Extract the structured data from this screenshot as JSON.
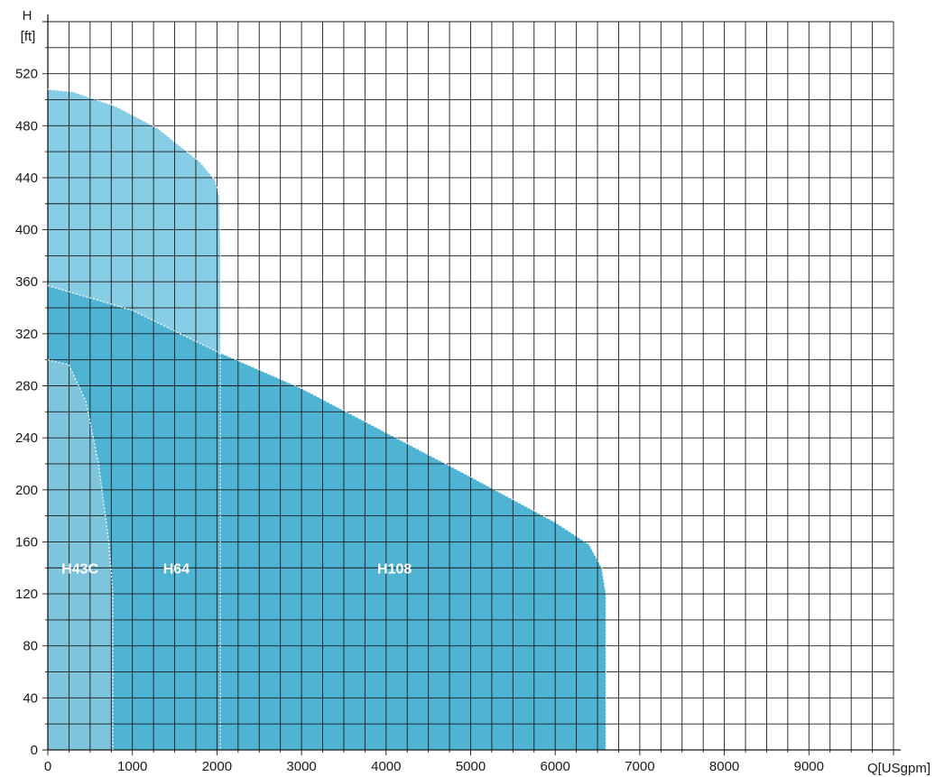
{
  "chart_data": {
    "type": "area",
    "title": "",
    "xlabel": "Q[USgpm]",
    "ylabel_top": "H",
    "ylabel_unit": "[ft]",
    "xlim": [
      0,
      10000
    ],
    "ylim": [
      0,
      560
    ],
    "x_ticks": [
      0,
      1000,
      2000,
      3000,
      4000,
      5000,
      6000,
      7000,
      8000,
      9000
    ],
    "y_ticks": [
      0,
      40,
      80,
      120,
      160,
      200,
      240,
      280,
      320,
      360,
      400,
      440,
      480,
      520
    ],
    "grid": true,
    "minor_x_step": 250,
    "minor_y_step": 20,
    "grid_color": "#1a1a1a",
    "series": [
      {
        "name": "H108",
        "color": "#4fb3d4",
        "label_at": [
          4100,
          140
        ],
        "points": [
          [
            0,
            357
          ],
          [
            1000,
            338
          ],
          [
            2050,
            305
          ],
          [
            3000,
            278
          ],
          [
            4000,
            244
          ],
          [
            5000,
            210
          ],
          [
            6000,
            175
          ],
          [
            6400,
            158
          ],
          [
            6550,
            140
          ],
          [
            6600,
            120
          ],
          [
            6600,
            0
          ],
          [
            0,
            0
          ]
        ]
      },
      {
        "name": "H64",
        "color": "#87cde5",
        "label_at": [
          1520,
          140
        ],
        "points": [
          [
            0,
            508
          ],
          [
            300,
            506
          ],
          [
            800,
            495
          ],
          [
            1300,
            478
          ],
          [
            1800,
            452
          ],
          [
            1980,
            438
          ],
          [
            2030,
            425
          ],
          [
            2040,
            380
          ],
          [
            2040,
            305
          ],
          [
            1000,
            338
          ],
          [
            0,
            357
          ]
        ]
      },
      {
        "name": "H43C",
        "color": "#7dc4dc",
        "label_at": [
          380,
          140
        ],
        "points": [
          [
            0,
            300
          ],
          [
            250,
            296
          ],
          [
            450,
            268
          ],
          [
            600,
            220
          ],
          [
            720,
            160
          ],
          [
            770,
            120
          ],
          [
            770,
            0
          ],
          [
            0,
            0
          ]
        ]
      }
    ]
  }
}
